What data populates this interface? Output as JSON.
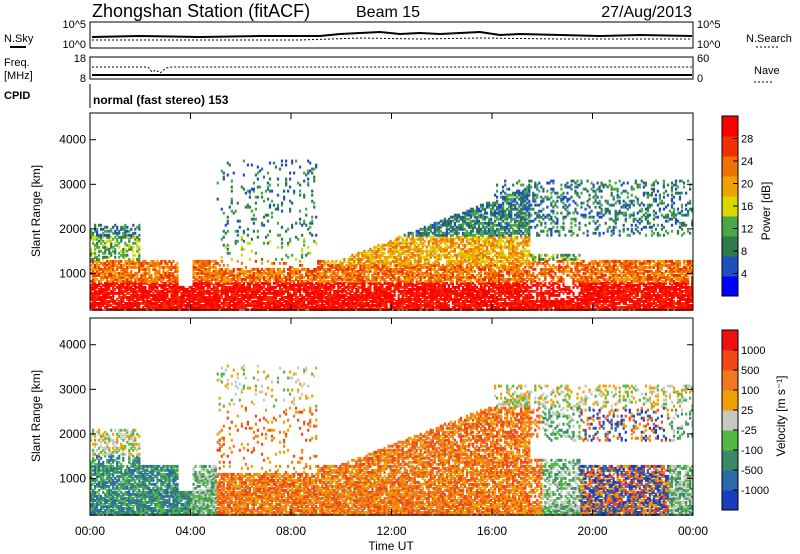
{
  "header": {
    "station_title": "Zhongshan Station (fitACF)",
    "beam": "Beam 15",
    "date": "27/Aug/2013"
  },
  "aux_panels": {
    "nsky_label": "N.Sky",
    "nsky_ticks": [
      "10^5",
      "10^0"
    ],
    "nsearch_label": "N.Search",
    "nsearch_ticks": [
      "10^5",
      "10^0"
    ],
    "freq_label": "Freq.",
    "freq_unit": "[MHz]",
    "freq_ticks": [
      "18",
      "8"
    ],
    "nave_label": "Nave",
    "nave_ticks": [
      "60",
      "0"
    ],
    "cpid_label": "CPID",
    "cpid_text": "normal (fast stereo) 153"
  },
  "chart_data": [
    {
      "type": "heatmap",
      "name": "power",
      "ylabel": "Slant Range [km]",
      "xlabel": "",
      "xlim_hours": [
        0,
        24
      ],
      "ylim_km": [
        180,
        4600
      ],
      "yticks": [
        "1000",
        "2000",
        "3000",
        "4000"
      ],
      "colorbar": {
        "label": "Power [dB]",
        "ticks": [
          "28",
          "24",
          "20",
          "16",
          "12",
          "8",
          "4"
        ],
        "colors": [
          "#0000ff",
          "#1f4fbf",
          "#2f7a4a",
          "#48a848",
          "#d8d800",
          "#f0a000",
          "#f07000",
          "#f03000",
          "#ff0000"
        ]
      }
    },
    {
      "type": "heatmap",
      "name": "velocity",
      "ylabel": "Slant Range [km]",
      "xlabel": "Time UT",
      "xlim_hours": [
        0,
        24
      ],
      "xticks": [
        "00:00",
        "04:00",
        "08:00",
        "12:00",
        "16:00",
        "20:00",
        "00:00"
      ],
      "ylim_km": [
        180,
        4600
      ],
      "yticks": [
        "1000",
        "2000",
        "3000",
        "4000"
      ],
      "colorbar": {
        "label": "Velocity [m s⁻¹]",
        "ticks": [
          "1000",
          "500",
          "100",
          "25",
          "-25",
          "-100",
          "-500",
          "-1000"
        ],
        "colors": [
          "#1a3dbf",
          "#2a6aa8",
          "#3a8a6a",
          "#54b848",
          "#c8c8c0",
          "#f0a000",
          "#f07820",
          "#f04818",
          "#ee1010"
        ]
      }
    }
  ]
}
